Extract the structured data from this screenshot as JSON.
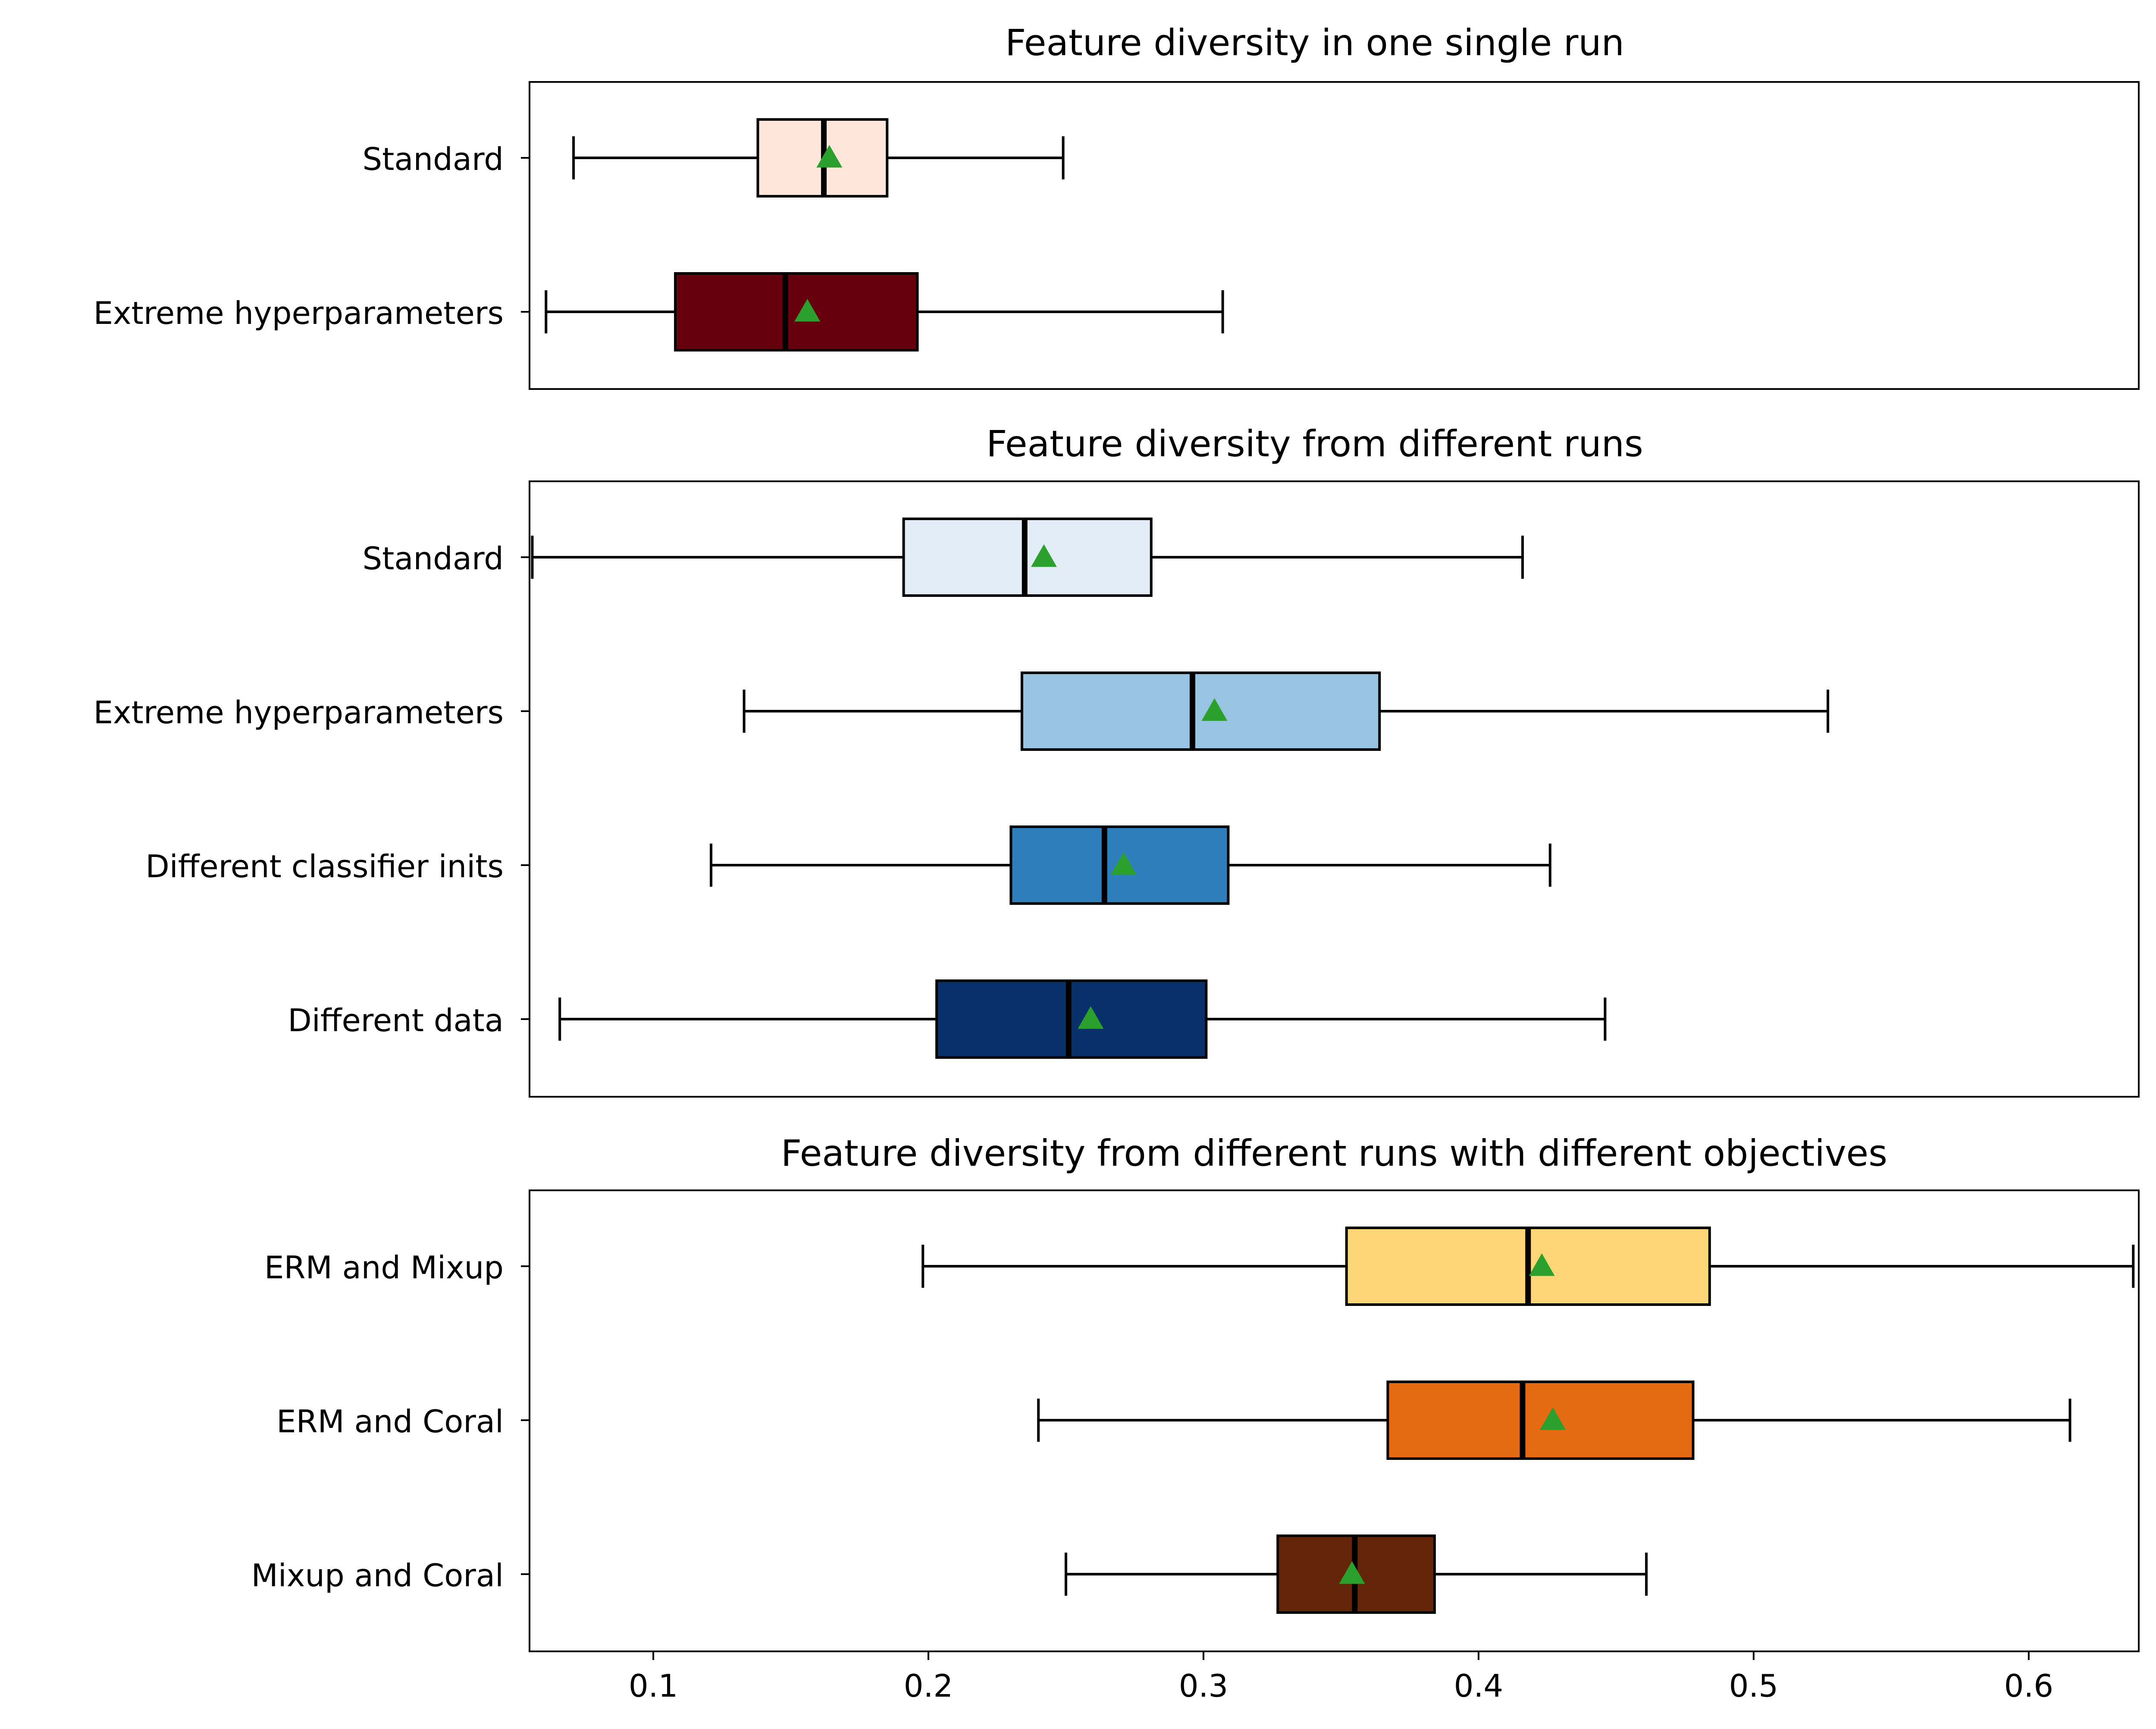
{
  "chart_data": [
    {
      "type": "box",
      "title": "Feature diversity in one single run",
      "xlim": [
        0.055,
        0.64
      ],
      "series": [
        {
          "label": "Standard",
          "color": "#fee6da",
          "whisker_low": 0.071,
          "q1": 0.138,
          "median": 0.162,
          "q3": 0.185,
          "whisker_high": 0.249,
          "mean": 0.164
        },
        {
          "label": "Extreme hyperparameters",
          "color": "#67000d",
          "whisker_low": 0.061,
          "q1": 0.108,
          "median": 0.148,
          "q3": 0.196,
          "whisker_high": 0.307,
          "mean": 0.156
        }
      ]
    },
    {
      "type": "box",
      "title": "Feature diversity from different runs",
      "xlim": [
        0.055,
        0.64
      ],
      "series": [
        {
          "label": "Standard",
          "color": "#e2edf8",
          "whisker_low": 0.056,
          "q1": 0.191,
          "median": 0.235,
          "q3": 0.281,
          "whisker_high": 0.416,
          "mean": 0.242
        },
        {
          "label": "Extreme hyperparameters",
          "color": "#97c4e0",
          "whisker_low": 0.133,
          "q1": 0.234,
          "median": 0.296,
          "q3": 0.364,
          "whisker_high": 0.527,
          "mean": 0.304
        },
        {
          "label": "Different classifier inits",
          "color": "#2f7ebc",
          "whisker_low": 0.121,
          "q1": 0.23,
          "median": 0.264,
          "q3": 0.309,
          "whisker_high": 0.426,
          "mean": 0.271
        },
        {
          "label": "Different data",
          "color": "#08306b",
          "whisker_low": 0.066,
          "q1": 0.203,
          "median": 0.251,
          "q3": 0.301,
          "whisker_high": 0.446,
          "mean": 0.259
        }
      ]
    },
    {
      "type": "box",
      "title": "Feature diversity from different runs with different objectives",
      "xlim": [
        0.055,
        0.64
      ],
      "xticks": [
        "0.1",
        "0.2",
        "0.3",
        "0.4",
        "0.5",
        "0.6"
      ],
      "series": [
        {
          "label": "ERM and Mixup",
          "color": "#fdd677",
          "whisker_low": 0.198,
          "q1": 0.352,
          "median": 0.418,
          "q3": 0.484,
          "whisker_high": 0.638,
          "mean": 0.423
        },
        {
          "label": "ERM and Coral",
          "color": "#e56a11",
          "whisker_low": 0.24,
          "q1": 0.367,
          "median": 0.416,
          "q3": 0.478,
          "whisker_high": 0.615,
          "mean": 0.427
        },
        {
          "label": "Mixup and Coral",
          "color": "#652508",
          "whisker_low": 0.25,
          "q1": 0.327,
          "median": 0.355,
          "q3": 0.384,
          "whisker_high": 0.461,
          "mean": 0.354
        }
      ]
    }
  ],
  "style": {
    "mean_marker_color": "#2ca02c",
    "line_color": "#000000"
  }
}
